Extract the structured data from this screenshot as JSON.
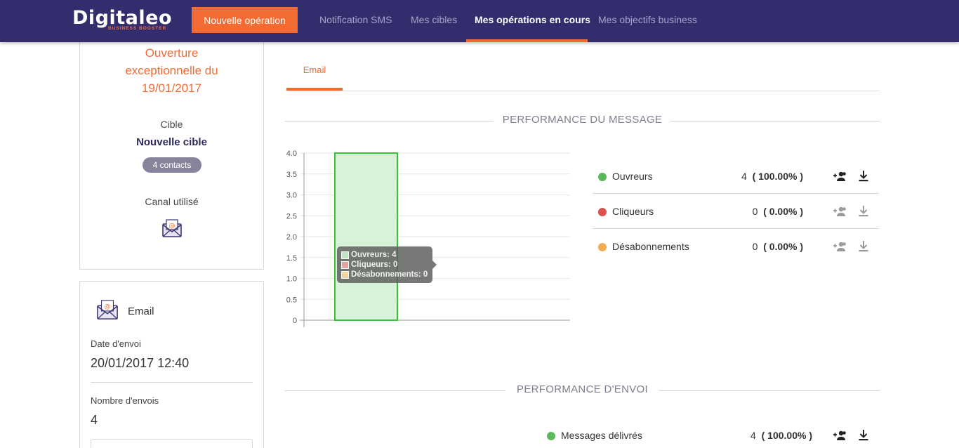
{
  "nav": {
    "logo_text": "Digitaleo",
    "logo_sub": "BUSINESS BOOSTER",
    "new_operation": "Nouvelle opération",
    "items": [
      {
        "label": "Notification SMS"
      },
      {
        "label": "Mes cibles"
      },
      {
        "label": "Mes opérations en cours"
      },
      {
        "label": "Mes objectifs business"
      }
    ],
    "active_index": 2
  },
  "operation": {
    "title_line1": "Ouverture",
    "title_line2": "exceptionnelle du",
    "title_line3": "19/01/2017",
    "cible_label": "Cible",
    "cible_name": "Nouvelle cible",
    "contacts_badge": "4 contacts",
    "canal_label": "Canal utilisé",
    "canal_icon": "email-icon"
  },
  "email_card": {
    "title": "Email",
    "date_label": "Date d'envoi",
    "date_value": "20/01/2017 12:40",
    "count_label": "Nombre d'envois",
    "count_value": "4"
  },
  "tabs": [
    {
      "label": "Email"
    }
  ],
  "sections": {
    "message": "PERFORMANCE DU MESSAGE",
    "envoi": "PERFORMANCE D'ENVOI"
  },
  "chart_data": {
    "type": "bar",
    "title": "",
    "xlabel": "",
    "ylabel": "",
    "ylim": [
      0,
      4
    ],
    "y_ticks": [
      "0",
      "0.5",
      "1.0",
      "1.5",
      "2.0",
      "2.5",
      "3.0",
      "3.5",
      "4.0"
    ],
    "series": [
      {
        "name": "Ouvreurs",
        "values": [
          4
        ],
        "color": "#5cb85c"
      },
      {
        "name": "Cliqueurs",
        "values": [
          0
        ],
        "color": "#d9534f"
      },
      {
        "name": "Désabonnements",
        "values": [
          0
        ],
        "color": "#f0ad4e"
      }
    ],
    "tooltip": [
      {
        "text": "Ouvreurs: 4",
        "color": "#bfe7bf"
      },
      {
        "text": "Cliqueurs: 0",
        "color": "#e8a3a3"
      },
      {
        "text": "Désabonnements: 0",
        "color": "#f2d4a2"
      }
    ]
  },
  "message_stats": [
    {
      "label": "Ouvreurs",
      "count": "4",
      "pct": "( 100.00% )",
      "color": "#5cb85c"
    },
    {
      "label": "Cliqueurs",
      "count": "0",
      "pct": "( 0.00% )",
      "color": "#d9534f"
    },
    {
      "label": "Désabonnements",
      "count": "0",
      "pct": "( 0.00% )",
      "color": "#f0ad4e"
    }
  ],
  "envoi_stats": [
    {
      "label": "Messages délivrés",
      "count": "4",
      "pct": "( 100.00% )",
      "color": "#5cb85c"
    }
  ]
}
